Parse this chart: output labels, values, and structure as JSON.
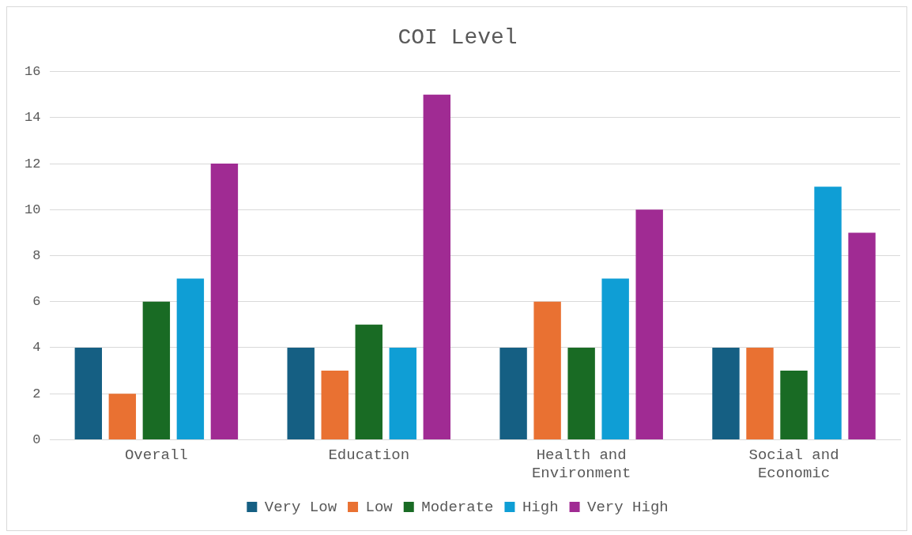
{
  "chart_data": {
    "type": "bar",
    "title": "COI Level",
    "categories": [
      "Overall",
      "Education",
      "Health and Environment",
      "Social and Economic"
    ],
    "series": [
      {
        "name": "Very Low",
        "color": "#155f83",
        "values": [
          4,
          4,
          4,
          4
        ]
      },
      {
        "name": "Low",
        "color": "#e97132",
        "values": [
          2,
          3,
          6,
          4
        ]
      },
      {
        "name": "Moderate",
        "color": "#196b24",
        "values": [
          6,
          5,
          4,
          3
        ]
      },
      {
        "name": "High",
        "color": "#0f9ed5",
        "values": [
          7,
          4,
          7,
          11
        ]
      },
      {
        "name": "Very High",
        "color": "#a02b93",
        "values": [
          12,
          15,
          10,
          9
        ]
      }
    ],
    "ylim": [
      0,
      16
    ],
    "yticks": [
      0,
      2,
      4,
      6,
      8,
      10,
      12,
      14,
      16
    ],
    "grid": "y",
    "legend": "bottom"
  }
}
